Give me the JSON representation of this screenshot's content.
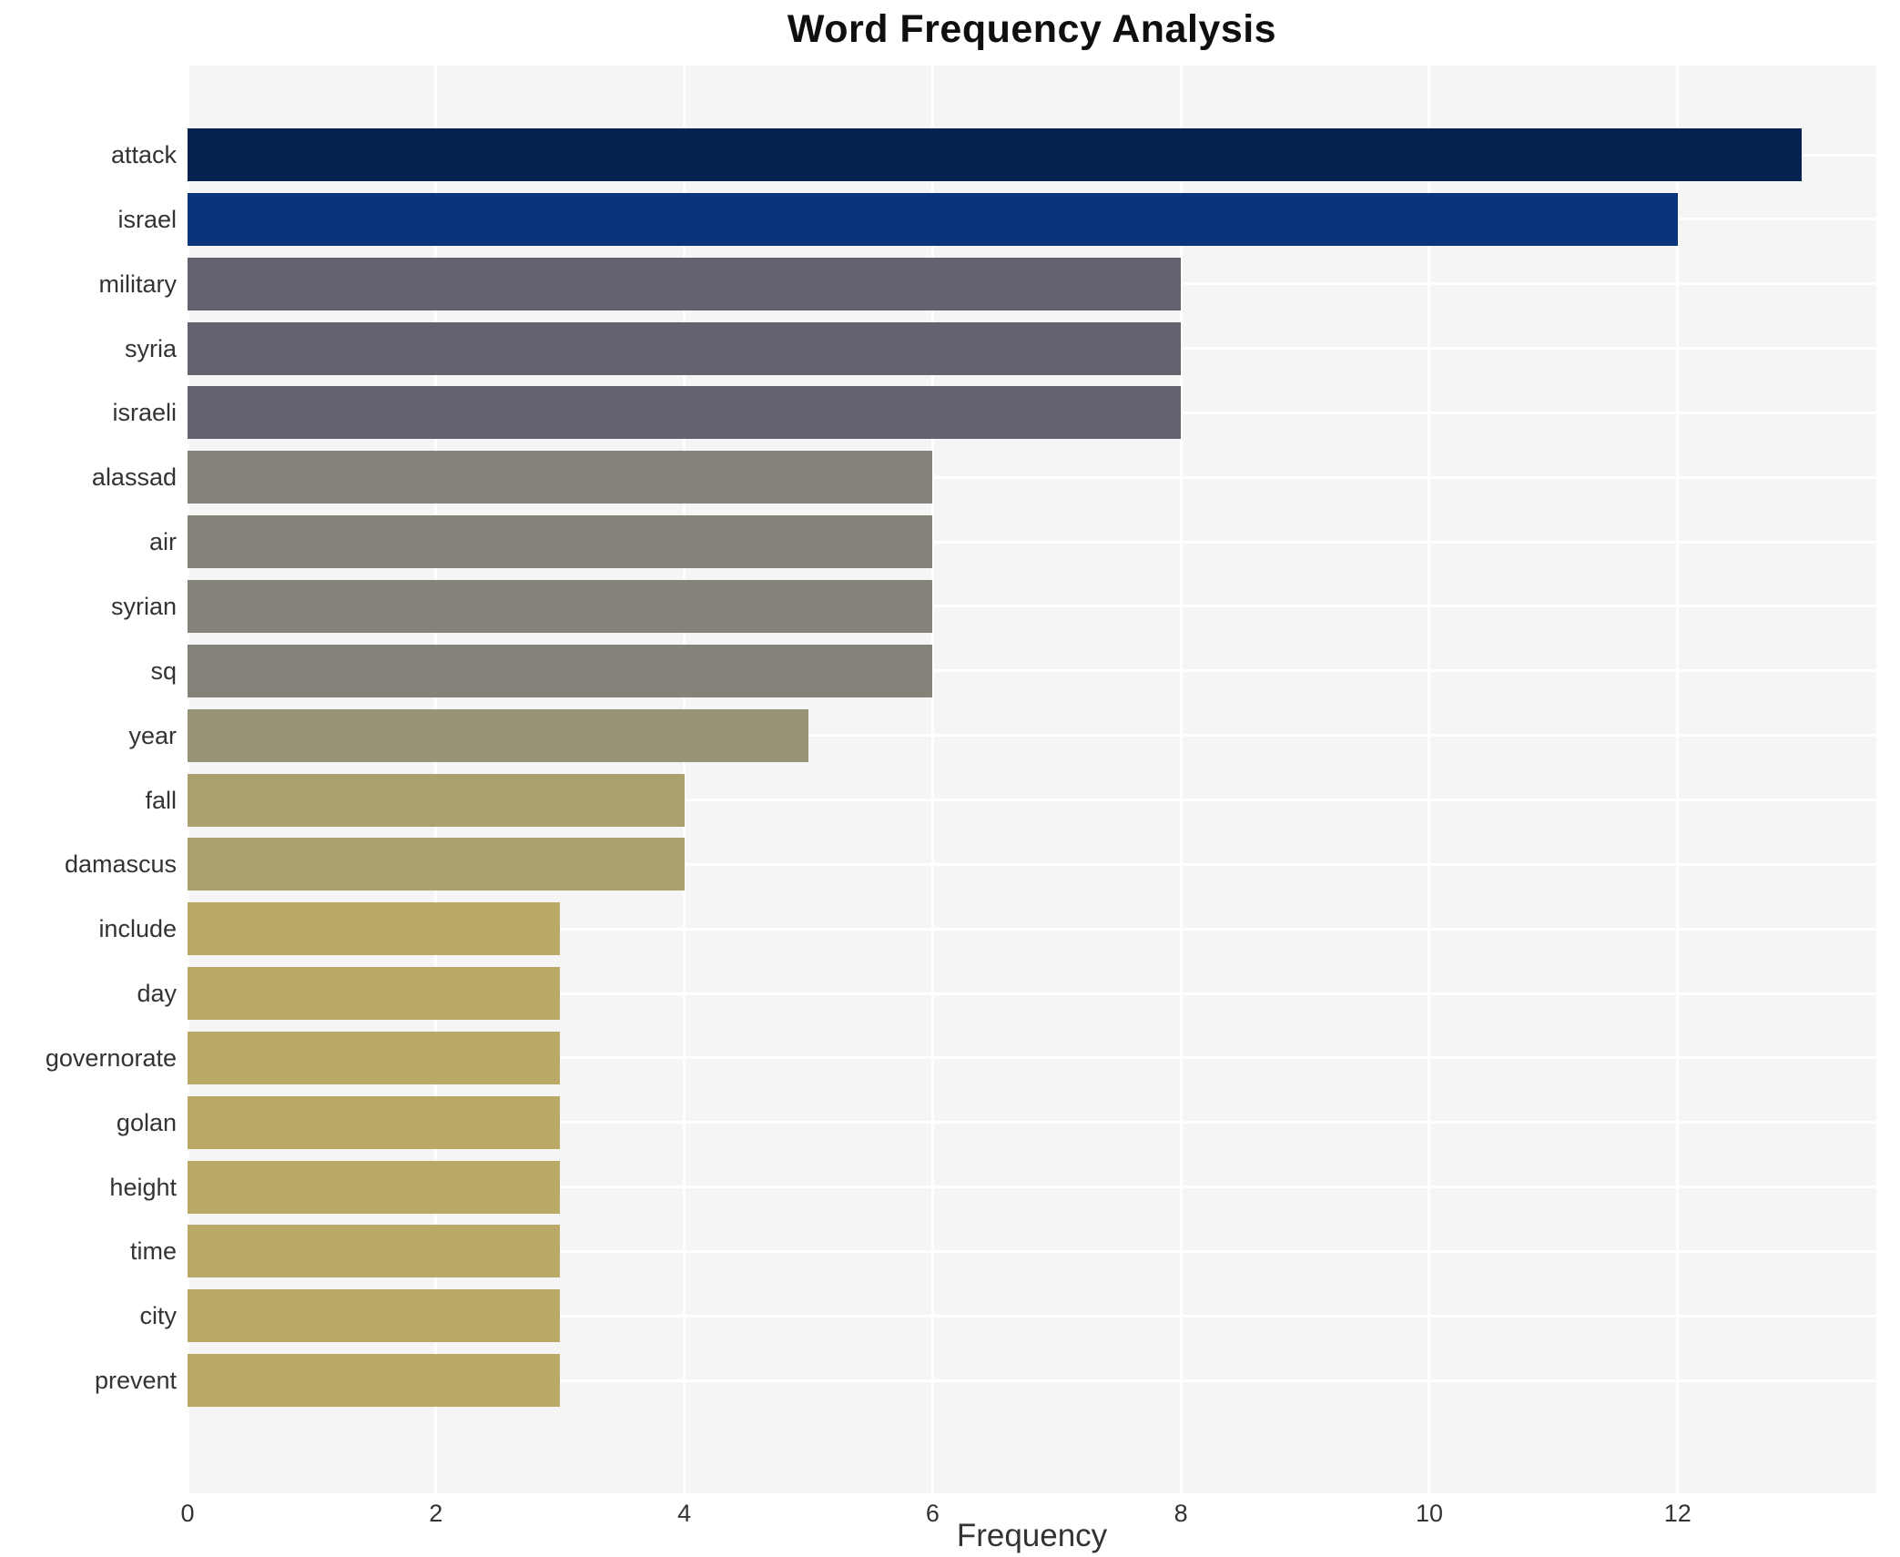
{
  "chart_data": {
    "type": "bar",
    "orientation": "horizontal",
    "title": "Word Frequency Analysis",
    "xlabel": "Frequency",
    "ylabel": "",
    "categories": [
      "attack",
      "israel",
      "military",
      "syria",
      "israeli",
      "alassad",
      "air",
      "syrian",
      "sq",
      "year",
      "fall",
      "damascus",
      "include",
      "day",
      "governorate",
      "golan",
      "height",
      "time",
      "city",
      "prevent"
    ],
    "values": [
      13,
      12,
      8,
      8,
      8,
      6,
      6,
      6,
      6,
      5,
      4,
      4,
      3,
      3,
      3,
      3,
      3,
      3,
      3,
      3
    ],
    "bar_colors": [
      "#05234e",
      "#08357b",
      "#62636e",
      "#62636e",
      "#62636e",
      "#85827a",
      "#85827a",
      "#85827a",
      "#85827a",
      "#999377",
      "#aba06f",
      "#aba06f",
      "#baa966",
      "#baa966",
      "#baa966",
      "#baa966",
      "#baa966",
      "#baa966",
      "#baa966",
      "#baa966"
    ],
    "xticks": [
      0,
      2,
      4,
      6,
      8,
      10,
      12
    ],
    "xlim": [
      0,
      13.6
    ],
    "grid": true,
    "legend": false,
    "plot_bg_color": "#f5f5f5",
    "grid_color": "#ffffff",
    "text_color": "#333333",
    "title_color": "#0f0f0f"
  }
}
